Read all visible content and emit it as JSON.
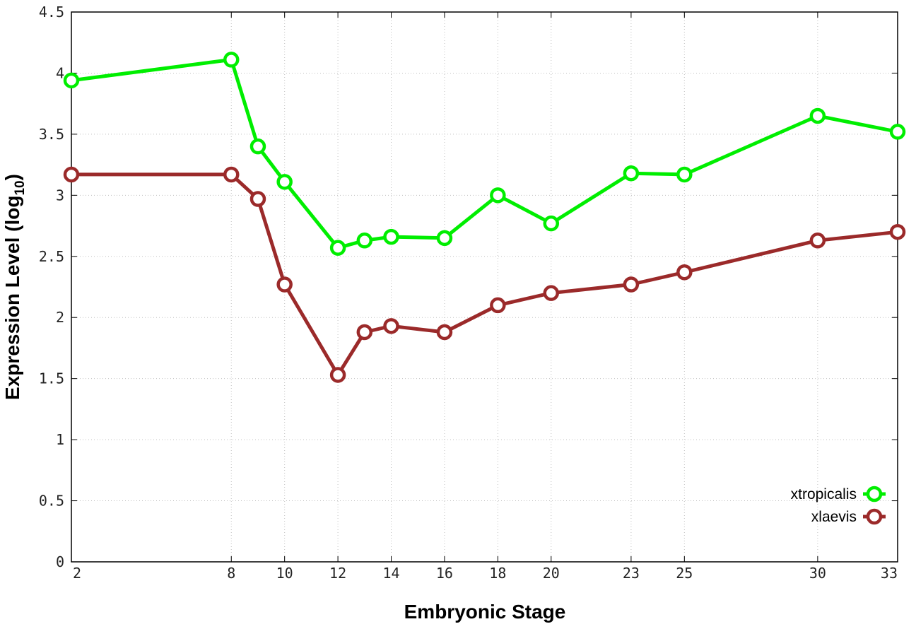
{
  "chart_data": {
    "type": "line",
    "title": "",
    "xlabel": "Embryonic Stage",
    "ylabel": {
      "main": "Expression Level (log",
      "subscript": "10",
      "suffix": ")"
    },
    "x_scale": "linear",
    "xlim": [
      2,
      33
    ],
    "ylim": [
      0,
      4.5
    ],
    "x_ticks": [
      2,
      8,
      10,
      12,
      14,
      16,
      18,
      20,
      23,
      25,
      30,
      33
    ],
    "y_ticks": [
      {
        "value": 0,
        "label": "0"
      },
      {
        "value": 0.5,
        "label": "0.5"
      },
      {
        "value": 1,
        "label": "1"
      },
      {
        "value": 1.5,
        "label": "1.5"
      },
      {
        "value": 2,
        "label": "2"
      },
      {
        "value": 2.5,
        "label": "2.5"
      },
      {
        "value": 3,
        "label": "3"
      },
      {
        "value": 3.5,
        "label": "3.5"
      },
      {
        "value": 4,
        "label": "4"
      },
      {
        "value": 4.5,
        "label": "4.5"
      }
    ],
    "grid": true,
    "legend_position": "bottom-right",
    "series": [
      {
        "name": "xtropicalis",
        "color": "#00ee00",
        "x": [
          2,
          8,
          9,
          10,
          12,
          13,
          14,
          16,
          18,
          20,
          23,
          25,
          30,
          33
        ],
        "y": [
          3.94,
          4.11,
          3.4,
          3.11,
          2.57,
          2.63,
          2.66,
          2.65,
          3.0,
          2.77,
          3.18,
          3.17,
          3.65,
          3.52
        ]
      },
      {
        "name": "xlaevis",
        "color": "#9b2a2a",
        "x": [
          2,
          8,
          9,
          10,
          12,
          13,
          14,
          16,
          18,
          20,
          23,
          25,
          30,
          33
        ],
        "y": [
          3.17,
          3.17,
          2.97,
          2.27,
          1.53,
          1.88,
          1.93,
          1.88,
          2.1,
          2.2,
          2.27,
          2.37,
          2.63,
          2.7
        ]
      }
    ]
  }
}
